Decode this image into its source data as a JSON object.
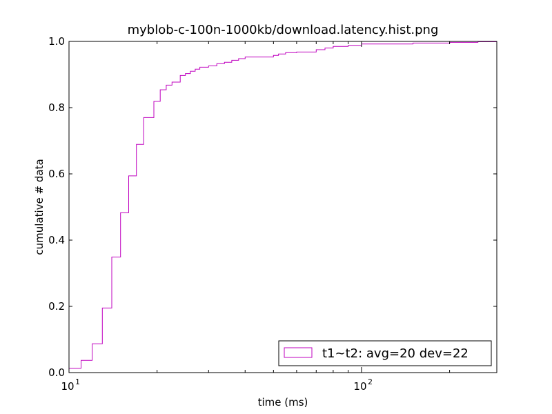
{
  "chart_data": {
    "type": "line",
    "title": "myblob-c-100n-1000kb/download.latency.hist.png",
    "xlabel": "time (ms)",
    "ylabel": "cumulative # data",
    "xscale": "log",
    "xlim": [
      10,
      290
    ],
    "ylim": [
      0.0,
      1.0
    ],
    "grid": false,
    "legend_position": "lower-right",
    "x_ticks": [
      {
        "base": "10",
        "exp": "1",
        "value": 10
      },
      {
        "base": "10",
        "exp": "2",
        "value": 100
      }
    ],
    "y_ticks": [
      "0.0",
      "0.2",
      "0.4",
      "0.6",
      "0.8",
      "1.0"
    ],
    "y_tick_values": [
      0.0,
      0.2,
      0.4,
      0.6,
      0.8,
      1.0
    ],
    "series": [
      {
        "name": "t1~t2: avg=20 dev=22",
        "color": "#bf00bf",
        "step": "post",
        "x": [
          10,
          11,
          12,
          13,
          14,
          15,
          16,
          17,
          18,
          19.5,
          20.5,
          21.5,
          22.5,
          24,
          25,
          26,
          27,
          28,
          30,
          32,
          34,
          36,
          38,
          40,
          50,
          52,
          55,
          60,
          70,
          75,
          80,
          90,
          100,
          150,
          200,
          250,
          290
        ],
        "y": [
          0.013,
          0.037,
          0.087,
          0.195,
          0.349,
          0.483,
          0.594,
          0.689,
          0.77,
          0.819,
          0.854,
          0.868,
          0.877,
          0.897,
          0.903,
          0.91,
          0.916,
          0.922,
          0.926,
          0.933,
          0.937,
          0.943,
          0.948,
          0.953,
          0.958,
          0.962,
          0.966,
          0.968,
          0.975,
          0.98,
          0.985,
          0.988,
          0.992,
          0.995,
          0.997,
          0.999,
          1.0
        ]
      }
    ]
  }
}
